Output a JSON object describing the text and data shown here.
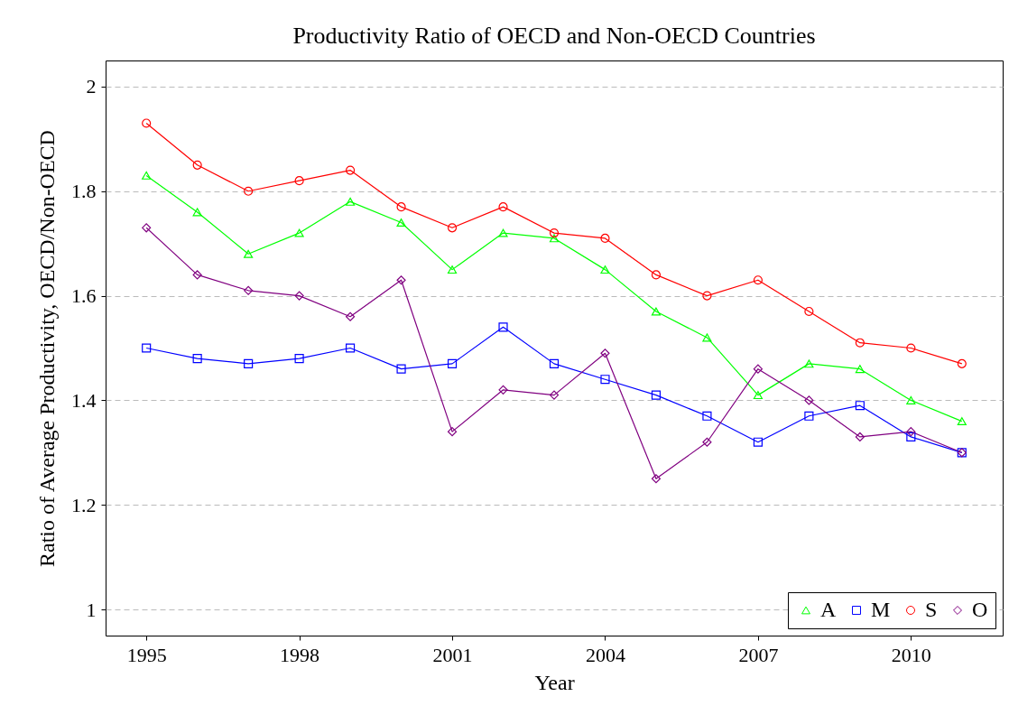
{
  "chart_data": {
    "type": "line",
    "title": "Productivity Ratio of OECD and Non-OECD Countries",
    "xlabel": "Year",
    "ylabel": "Ratio of Average Productivity, OECD/Non-OECD",
    "x": [
      1995,
      1996,
      1997,
      1998,
      1999,
      2000,
      2001,
      2002,
      2003,
      2004,
      2005,
      2006,
      2007,
      2008,
      2009,
      2010,
      2011
    ],
    "series": [
      {
        "name": "A",
        "color": "#00ff00",
        "marker": "triangle",
        "values": [
          1.83,
          1.76,
          1.68,
          1.72,
          1.78,
          1.74,
          1.65,
          1.72,
          1.71,
          1.65,
          1.57,
          1.52,
          1.41,
          1.47,
          1.46,
          1.4,
          1.36
        ]
      },
      {
        "name": "M",
        "color": "#0000ff",
        "marker": "square",
        "values": [
          1.5,
          1.48,
          1.47,
          1.48,
          1.5,
          1.46,
          1.47,
          1.54,
          1.47,
          1.44,
          1.41,
          1.37,
          1.32,
          1.37,
          1.39,
          1.33,
          1.3
        ]
      },
      {
        "name": "S",
        "color": "#ff0000",
        "marker": "circle",
        "values": [
          1.93,
          1.85,
          1.8,
          1.82,
          1.84,
          1.77,
          1.73,
          1.77,
          1.72,
          1.71,
          1.64,
          1.6,
          1.63,
          1.57,
          1.51,
          1.5,
          1.47
        ]
      },
      {
        "name": "O",
        "color": "#800080",
        "marker": "diamond",
        "values": [
          1.73,
          1.64,
          1.61,
          1.6,
          1.56,
          1.63,
          1.34,
          1.42,
          1.41,
          1.49,
          1.25,
          1.32,
          1.46,
          1.4,
          1.33,
          1.34,
          1.3
        ]
      }
    ],
    "xlim": [
      1994.2,
      2011.8
    ],
    "xticks": [
      1995,
      1998,
      2001,
      2004,
      2007,
      2010
    ],
    "ylim": [
      0.95,
      2.05
    ],
    "yticks": [
      1,
      1.2,
      1.4,
      1.6,
      1.8,
      2
    ],
    "grid": "y",
    "legend": "bottom right",
    "line_style": "solid"
  }
}
